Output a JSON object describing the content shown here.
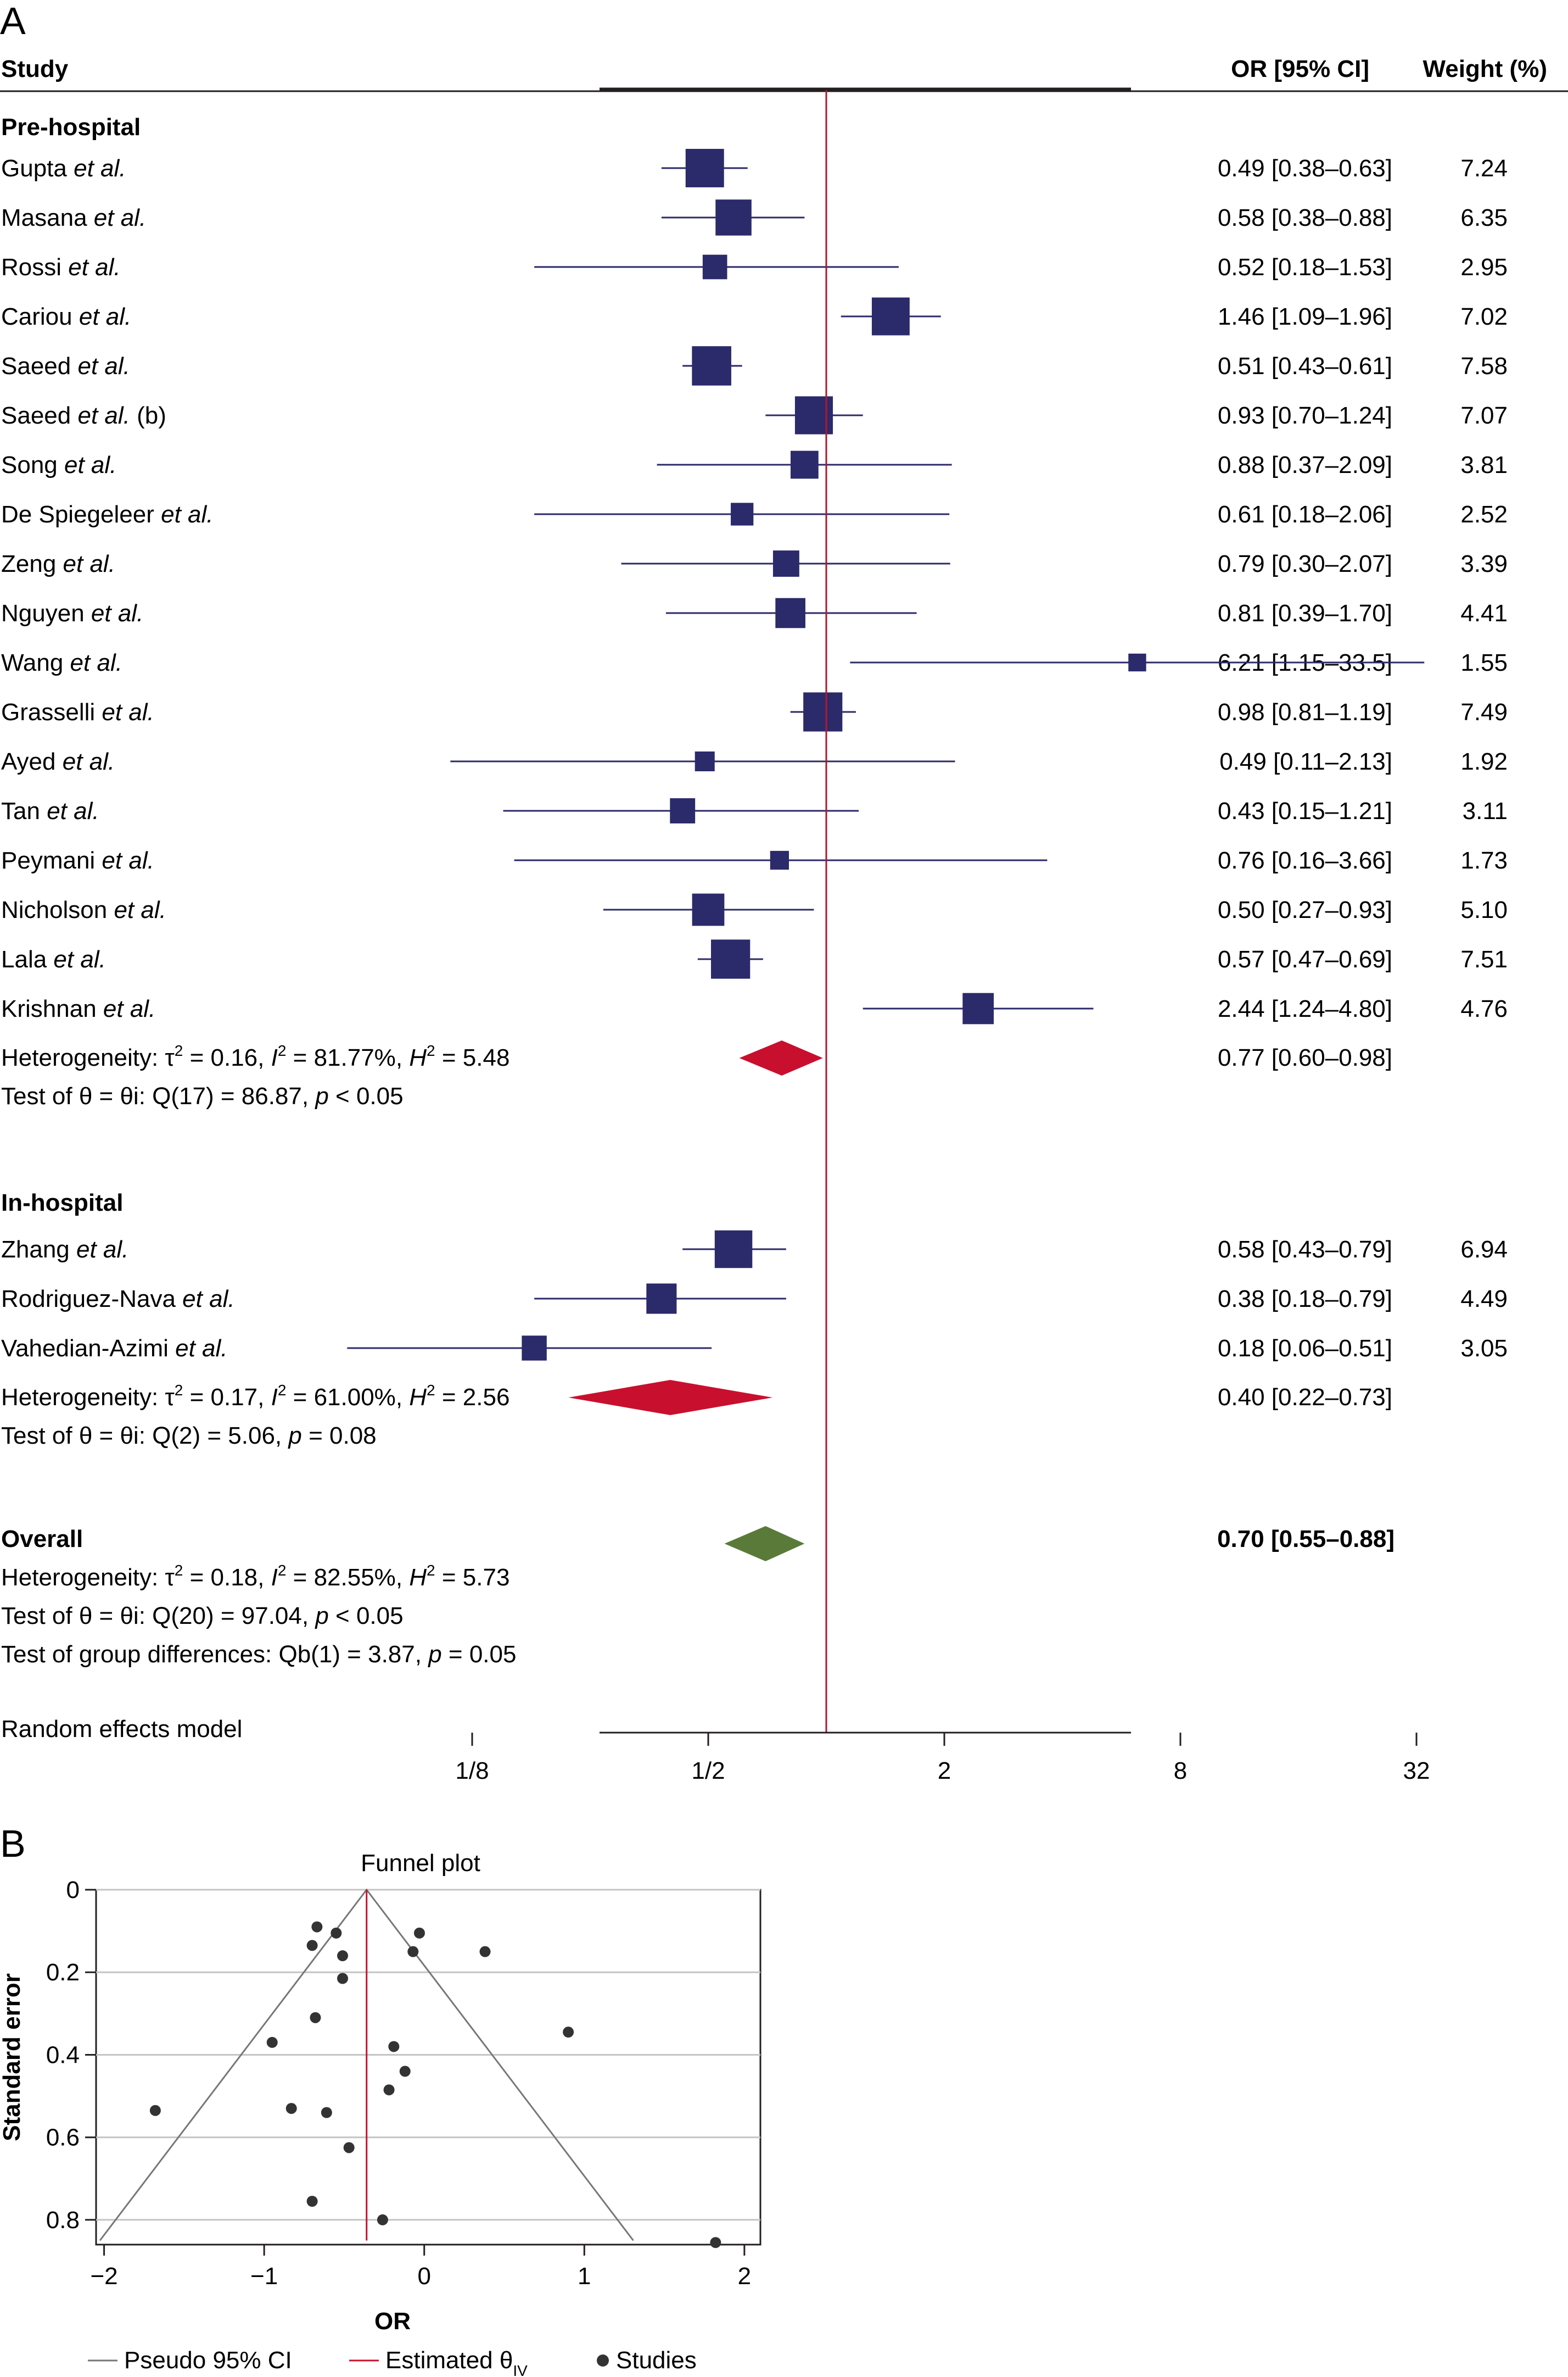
{
  "chart_data": [
    {
      "type": "forest",
      "panel_label": "A",
      "columns": {
        "study": "Study",
        "or": "OR [95% CI]",
        "weight": "Weight (%)"
      },
      "x_scale": "log2",
      "xlim": [
        0.0625,
        32
      ],
      "x_ticks": [
        {
          "value": 0.125,
          "label": "1/8"
        },
        {
          "value": 0.5,
          "label": "1/2"
        },
        {
          "value": 2,
          "label": "2"
        },
        {
          "value": 8,
          "label": "8"
        },
        {
          "value": 32,
          "label": "32"
        }
      ],
      "reference_line": 1,
      "groups": [
        {
          "name": "Pre-hospital",
          "studies": [
            {
              "author": "Gupta",
              "suffix": "",
              "or": 0.49,
              "lo": 0.38,
              "hi": 0.63,
              "ci_text": "0.49 [0.38–0.63]",
              "weight": 7.24,
              "weight_text": "7.24"
            },
            {
              "author": "Masana",
              "suffix": "",
              "or": 0.58,
              "lo": 0.38,
              "hi": 0.88,
              "ci_text": "0.58 [0.38–0.88]",
              "weight": 6.35,
              "weight_text": "6.35"
            },
            {
              "author": "Rossi",
              "suffix": "",
              "or": 0.52,
              "lo": 0.18,
              "hi": 1.53,
              "ci_text": "0.52 [0.18–1.53]",
              "weight": 2.95,
              "weight_text": "2.95"
            },
            {
              "author": "Cariou",
              "suffix": "",
              "or": 1.46,
              "lo": 1.09,
              "hi": 1.96,
              "ci_text": "1.46 [1.09–1.96]",
              "weight": 7.02,
              "weight_text": "7.02"
            },
            {
              "author": "Saeed",
              "suffix": "",
              "or": 0.51,
              "lo": 0.43,
              "hi": 0.61,
              "ci_text": "0.51 [0.43–0.61]",
              "weight": 7.58,
              "weight_text": "7.58"
            },
            {
              "author": "Saeed",
              "suffix": " (b)",
              "or": 0.93,
              "lo": 0.7,
              "hi": 1.24,
              "ci_text": "0.93 [0.70–1.24]",
              "weight": 7.07,
              "weight_text": "7.07"
            },
            {
              "author": "Song",
              "suffix": "",
              "or": 0.88,
              "lo": 0.37,
              "hi": 2.09,
              "ci_text": "0.88 [0.37–2.09]",
              "weight": 3.81,
              "weight_text": "3.81"
            },
            {
              "author": "De Spiegeleer",
              "suffix": "",
              "or": 0.61,
              "lo": 0.18,
              "hi": 2.06,
              "ci_text": "0.61 [0.18–2.06]",
              "weight": 2.52,
              "weight_text": "2.52"
            },
            {
              "author": "Zeng",
              "suffix": "",
              "or": 0.79,
              "lo": 0.3,
              "hi": 2.07,
              "ci_text": "0.79 [0.30–2.07]",
              "weight": 3.39,
              "weight_text": "3.39"
            },
            {
              "author": "Nguyen",
              "suffix": "",
              "or": 0.81,
              "lo": 0.39,
              "hi": 1.7,
              "ci_text": "0.81 [0.39–1.70]",
              "weight": 4.41,
              "weight_text": "4.41"
            },
            {
              "author": "Wang",
              "suffix": "",
              "or": 6.21,
              "lo": 1.15,
              "hi": 33.5,
              "ci_text": "6.21 [1.15–33.5]",
              "weight": 1.55,
              "weight_text": "1.55"
            },
            {
              "author": "Grasselli",
              "suffix": "",
              "or": 0.98,
              "lo": 0.81,
              "hi": 1.19,
              "ci_text": "0.98 [0.81–1.19]",
              "weight": 7.49,
              "weight_text": "7.49"
            },
            {
              "author": "Ayed",
              "suffix": "",
              "or": 0.49,
              "lo": 0.11,
              "hi": 2.13,
              "ci_text": "0.49 [0.11–2.13]",
              "weight": 1.92,
              "weight_text": "1.92"
            },
            {
              "author": "Tan",
              "suffix": "",
              "or": 0.43,
              "lo": 0.15,
              "hi": 1.21,
              "ci_text": "0.43 [0.15–1.21]",
              "weight": 3.11,
              "weight_text": "3.11"
            },
            {
              "author": "Peymani",
              "suffix": "",
              "or": 0.76,
              "lo": 0.16,
              "hi": 3.66,
              "ci_text": "0.76 [0.16–3.66]",
              "weight": 1.73,
              "weight_text": "1.73"
            },
            {
              "author": "Nicholson",
              "suffix": "",
              "or": 0.5,
              "lo": 0.27,
              "hi": 0.93,
              "ci_text": "0.50 [0.27–0.93]",
              "weight": 5.1,
              "weight_text": "5.10"
            },
            {
              "author": "Lala",
              "suffix": "",
              "or": 0.57,
              "lo": 0.47,
              "hi": 0.69,
              "ci_text": "0.57 [0.47–0.69]",
              "weight": 7.51,
              "weight_text": "7.51"
            },
            {
              "author": "Krishnan",
              "suffix": "",
              "or": 2.44,
              "lo": 1.24,
              "hi": 4.8,
              "ci_text": "2.44 [1.24–4.80]",
              "weight": 4.76,
              "weight_text": "4.76"
            }
          ],
          "pooled": {
            "or": 0.77,
            "lo": 0.6,
            "hi": 0.98,
            "ci_text": "0.77 [0.60–0.98]",
            "color": "#c8102e"
          },
          "heterogeneity": {
            "tau2": "0.16",
            "i2": "81.77%",
            "h2": "5.48"
          },
          "test_text": "Test of θ = θi: Q(17) = 86.87, ",
          "test_p": " < 0.05"
        },
        {
          "name": "In-hospital",
          "studies": [
            {
              "author": "Zhang",
              "suffix": "",
              "or": 0.58,
              "lo": 0.43,
              "hi": 0.79,
              "ci_text": "0.58 [0.43–0.79]",
              "weight": 6.94,
              "weight_text": "6.94"
            },
            {
              "author": "Rodriguez-Nava",
              "suffix": "",
              "or": 0.38,
              "lo": 0.18,
              "hi": 0.79,
              "ci_text": "0.38 [0.18–0.79]",
              "weight": 4.49,
              "weight_text": "4.49"
            },
            {
              "author": "Vahedian-Azimi",
              "suffix": "",
              "or": 0.18,
              "lo": 0.06,
              "hi": 0.51,
              "ci_text": "0.18 [0.06–0.51]",
              "weight": 3.05,
              "weight_text": "3.05"
            }
          ],
          "pooled": {
            "or": 0.4,
            "lo": 0.22,
            "hi": 0.73,
            "ci_text": "0.40 [0.22–0.73]",
            "color": "#c8102e"
          },
          "heterogeneity": {
            "tau2": "0.17",
            "i2": "61.00%",
            "h2": "2.56"
          },
          "test_text": "Test of θ = θi: Q(2) = 5.06, ",
          "test_p": " = 0.08"
        }
      ],
      "overall": {
        "label": "Overall",
        "or": 0.7,
        "lo": 0.55,
        "hi": 0.88,
        "ci_text": "0.70 [0.55–0.88]",
        "color": "#5a7a3a",
        "heterogeneity": {
          "tau2": "0.18",
          "i2": "82.55%",
          "h2": "5.73"
        },
        "test_text": "Test of θ = θi: Q(20) = 97.04, ",
        "test_p": " < 0.05",
        "group_test_text": "Test of group differences: Qb(1) = 3.87, ",
        "group_test_p": " = 0.05"
      },
      "model_note": "Random effects model",
      "text_bits": {
        "et_al": "et al.",
        "het_prefix": "Heterogeneity: τ",
        "sup2": "2",
        "eq": " = ",
        "comma": ", ",
        "i": "I",
        "h": "H",
        "p": "p"
      },
      "colors": {
        "box": "#2b2a6a",
        "line": "#2b2a6a",
        "ref_line": "#b0172e"
      }
    },
    {
      "type": "scatter",
      "panel_label": "B",
      "title": "Funnel plot",
      "xlabel": "OR",
      "ylabel": "Standard error",
      "xlim": [
        -2.05,
        2.1
      ],
      "ylim": [
        0,
        0.86
      ],
      "y_inverted": true,
      "x_ticks": [
        -2,
        -1,
        0,
        1,
        2
      ],
      "x_tick_labels": [
        "−2",
        "−1",
        "0",
        "1",
        "2"
      ],
      "y_ticks": [
        0,
        0.2,
        0.4,
        0.6,
        0.8
      ],
      "y_tick_labels": [
        "0",
        "0.2",
        "0.4",
        "0.6",
        "0.8"
      ],
      "grid_y": true,
      "estimated_theta": -0.36,
      "pseudo_ci_max_se": 0.85,
      "points": [
        {
          "x": -0.67,
          "y": 0.09
        },
        {
          "x": -0.55,
          "y": 0.105
        },
        {
          "x": -0.7,
          "y": 0.135
        },
        {
          "x": -0.51,
          "y": 0.16
        },
        {
          "x": -0.51,
          "y": 0.215
        },
        {
          "x": -0.03,
          "y": 0.105
        },
        {
          "x": -0.07,
          "y": 0.15
        },
        {
          "x": 0.38,
          "y": 0.15
        },
        {
          "x": -0.68,
          "y": 0.31
        },
        {
          "x": 0.9,
          "y": 0.345
        },
        {
          "x": -0.95,
          "y": 0.37
        },
        {
          "x": -0.19,
          "y": 0.38
        },
        {
          "x": -0.12,
          "y": 0.44
        },
        {
          "x": -0.22,
          "y": 0.485
        },
        {
          "x": -1.68,
          "y": 0.535
        },
        {
          "x": -0.83,
          "y": 0.53
        },
        {
          "x": -0.61,
          "y": 0.54
        },
        {
          "x": -0.47,
          "y": 0.625
        },
        {
          "x": -0.7,
          "y": 0.755
        },
        {
          "x": -0.26,
          "y": 0.8
        },
        {
          "x": 1.82,
          "y": 0.855
        }
      ],
      "legend": {
        "position": "bottom",
        "items": [
          {
            "label": "Pseudo 95% CI",
            "kind": "line",
            "color": "#777777"
          },
          {
            "label": "Estimated θ",
            "sub": "IV",
            "kind": "line",
            "color": "#c8102e"
          },
          {
            "label": "Studies",
            "kind": "dot",
            "color": "#333333"
          }
        ]
      }
    }
  ]
}
